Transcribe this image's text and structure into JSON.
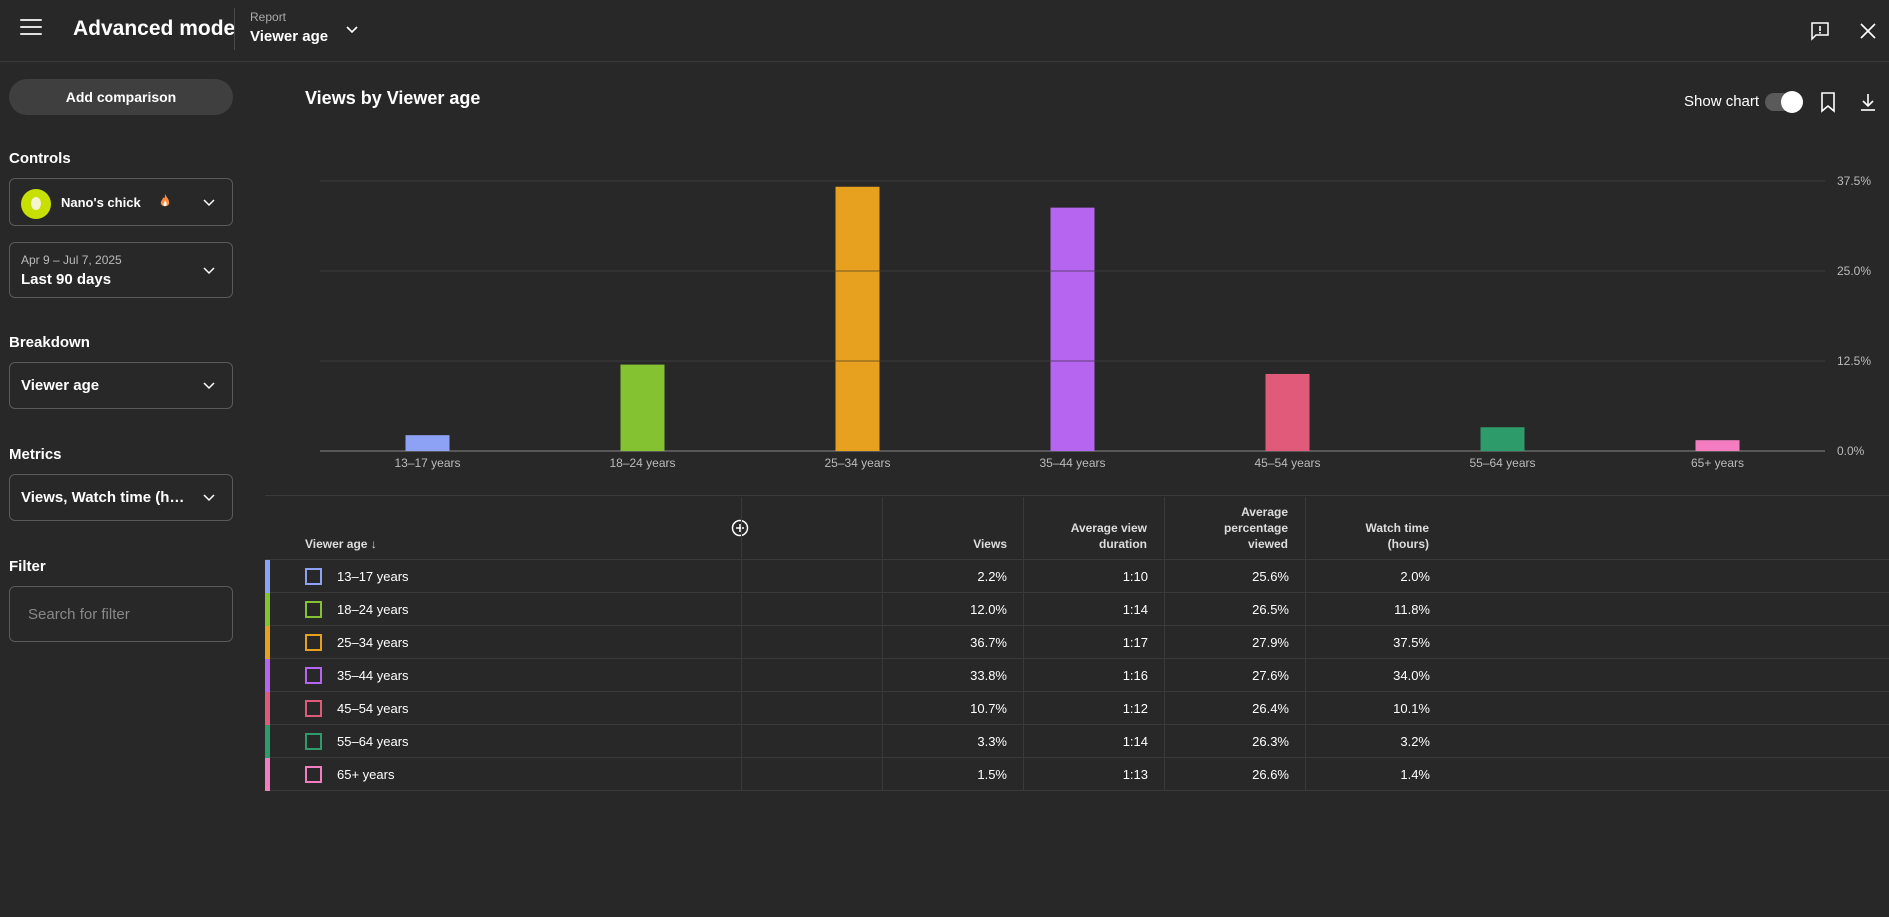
{
  "header": {
    "title": "Advanced mode",
    "report_label": "Report",
    "report_value": "Viewer age"
  },
  "sidebar": {
    "add_comparison": "Add comparison",
    "controls_label": "Controls",
    "channel_name": "Nano's chick",
    "date_range": "Apr 9 – Jul 7, 2025",
    "date_preset": "Last 90 days",
    "breakdown_label": "Breakdown",
    "breakdown_value": "Viewer age",
    "metrics_label": "Metrics",
    "metrics_value": "Views, Watch time (ho...",
    "filter_label": "Filter",
    "filter_placeholder": "Search for filter"
  },
  "chart_header": {
    "title": "Views by Viewer age",
    "show_chart_label": "Show chart",
    "show_chart_on": true
  },
  "chart_data": {
    "type": "bar",
    "title": "Views by Viewer age",
    "categories": [
      "13–17 years",
      "18–24 years",
      "25–34 years",
      "35–44 years",
      "45–54 years",
      "55–64 years",
      "65+ years"
    ],
    "values": [
      2.2,
      12.0,
      36.7,
      33.8,
      10.7,
      3.3,
      1.5
    ],
    "colors": [
      "#8ea2f5",
      "#84c232",
      "#e8a11e",
      "#b665f0",
      "#e05a7a",
      "#2d9c6a",
      "#f47dc1"
    ],
    "ylim": [
      0,
      37.5
    ],
    "yticks": [
      "0.0%",
      "12.5%",
      "25.0%",
      "37.5%"
    ],
    "ytick_values": [
      0,
      12.5,
      25,
      37.5
    ],
    "grid": true,
    "y_axis_side": "right"
  },
  "table": {
    "columns": {
      "dimension": "Viewer age",
      "views": "Views",
      "avg_view_duration": [
        "Average view",
        "duration"
      ],
      "avg_pct_viewed": [
        "Average",
        "percentage",
        "viewed"
      ],
      "watch_time": [
        "Watch time",
        "(hours)"
      ]
    },
    "rows": [
      {
        "label": "13–17 years",
        "views": "2.2%",
        "avd": "1:10",
        "apv": "25.6%",
        "wt": "2.0%",
        "color": "#8ea2f5"
      },
      {
        "label": "18–24 years",
        "views": "12.0%",
        "avd": "1:14",
        "apv": "26.5%",
        "wt": "11.8%",
        "color": "#84c232"
      },
      {
        "label": "25–34 years",
        "views": "36.7%",
        "avd": "1:17",
        "apv": "27.9%",
        "wt": "37.5%",
        "color": "#e8a11e"
      },
      {
        "label": "35–44 years",
        "views": "33.8%",
        "avd": "1:16",
        "apv": "27.6%",
        "wt": "34.0%",
        "color": "#b665f0"
      },
      {
        "label": "45–54 years",
        "views": "10.7%",
        "avd": "1:12",
        "apv": "26.4%",
        "wt": "10.1%",
        "color": "#e05a7a"
      },
      {
        "label": "55–64 years",
        "views": "3.3%",
        "avd": "1:14",
        "apv": "26.3%",
        "wt": "3.2%",
        "color": "#2d9c6a"
      },
      {
        "label": "65+ years",
        "views": "1.5%",
        "avd": "1:13",
        "apv": "26.6%",
        "wt": "1.4%",
        "color": "#f47dc1"
      }
    ]
  }
}
